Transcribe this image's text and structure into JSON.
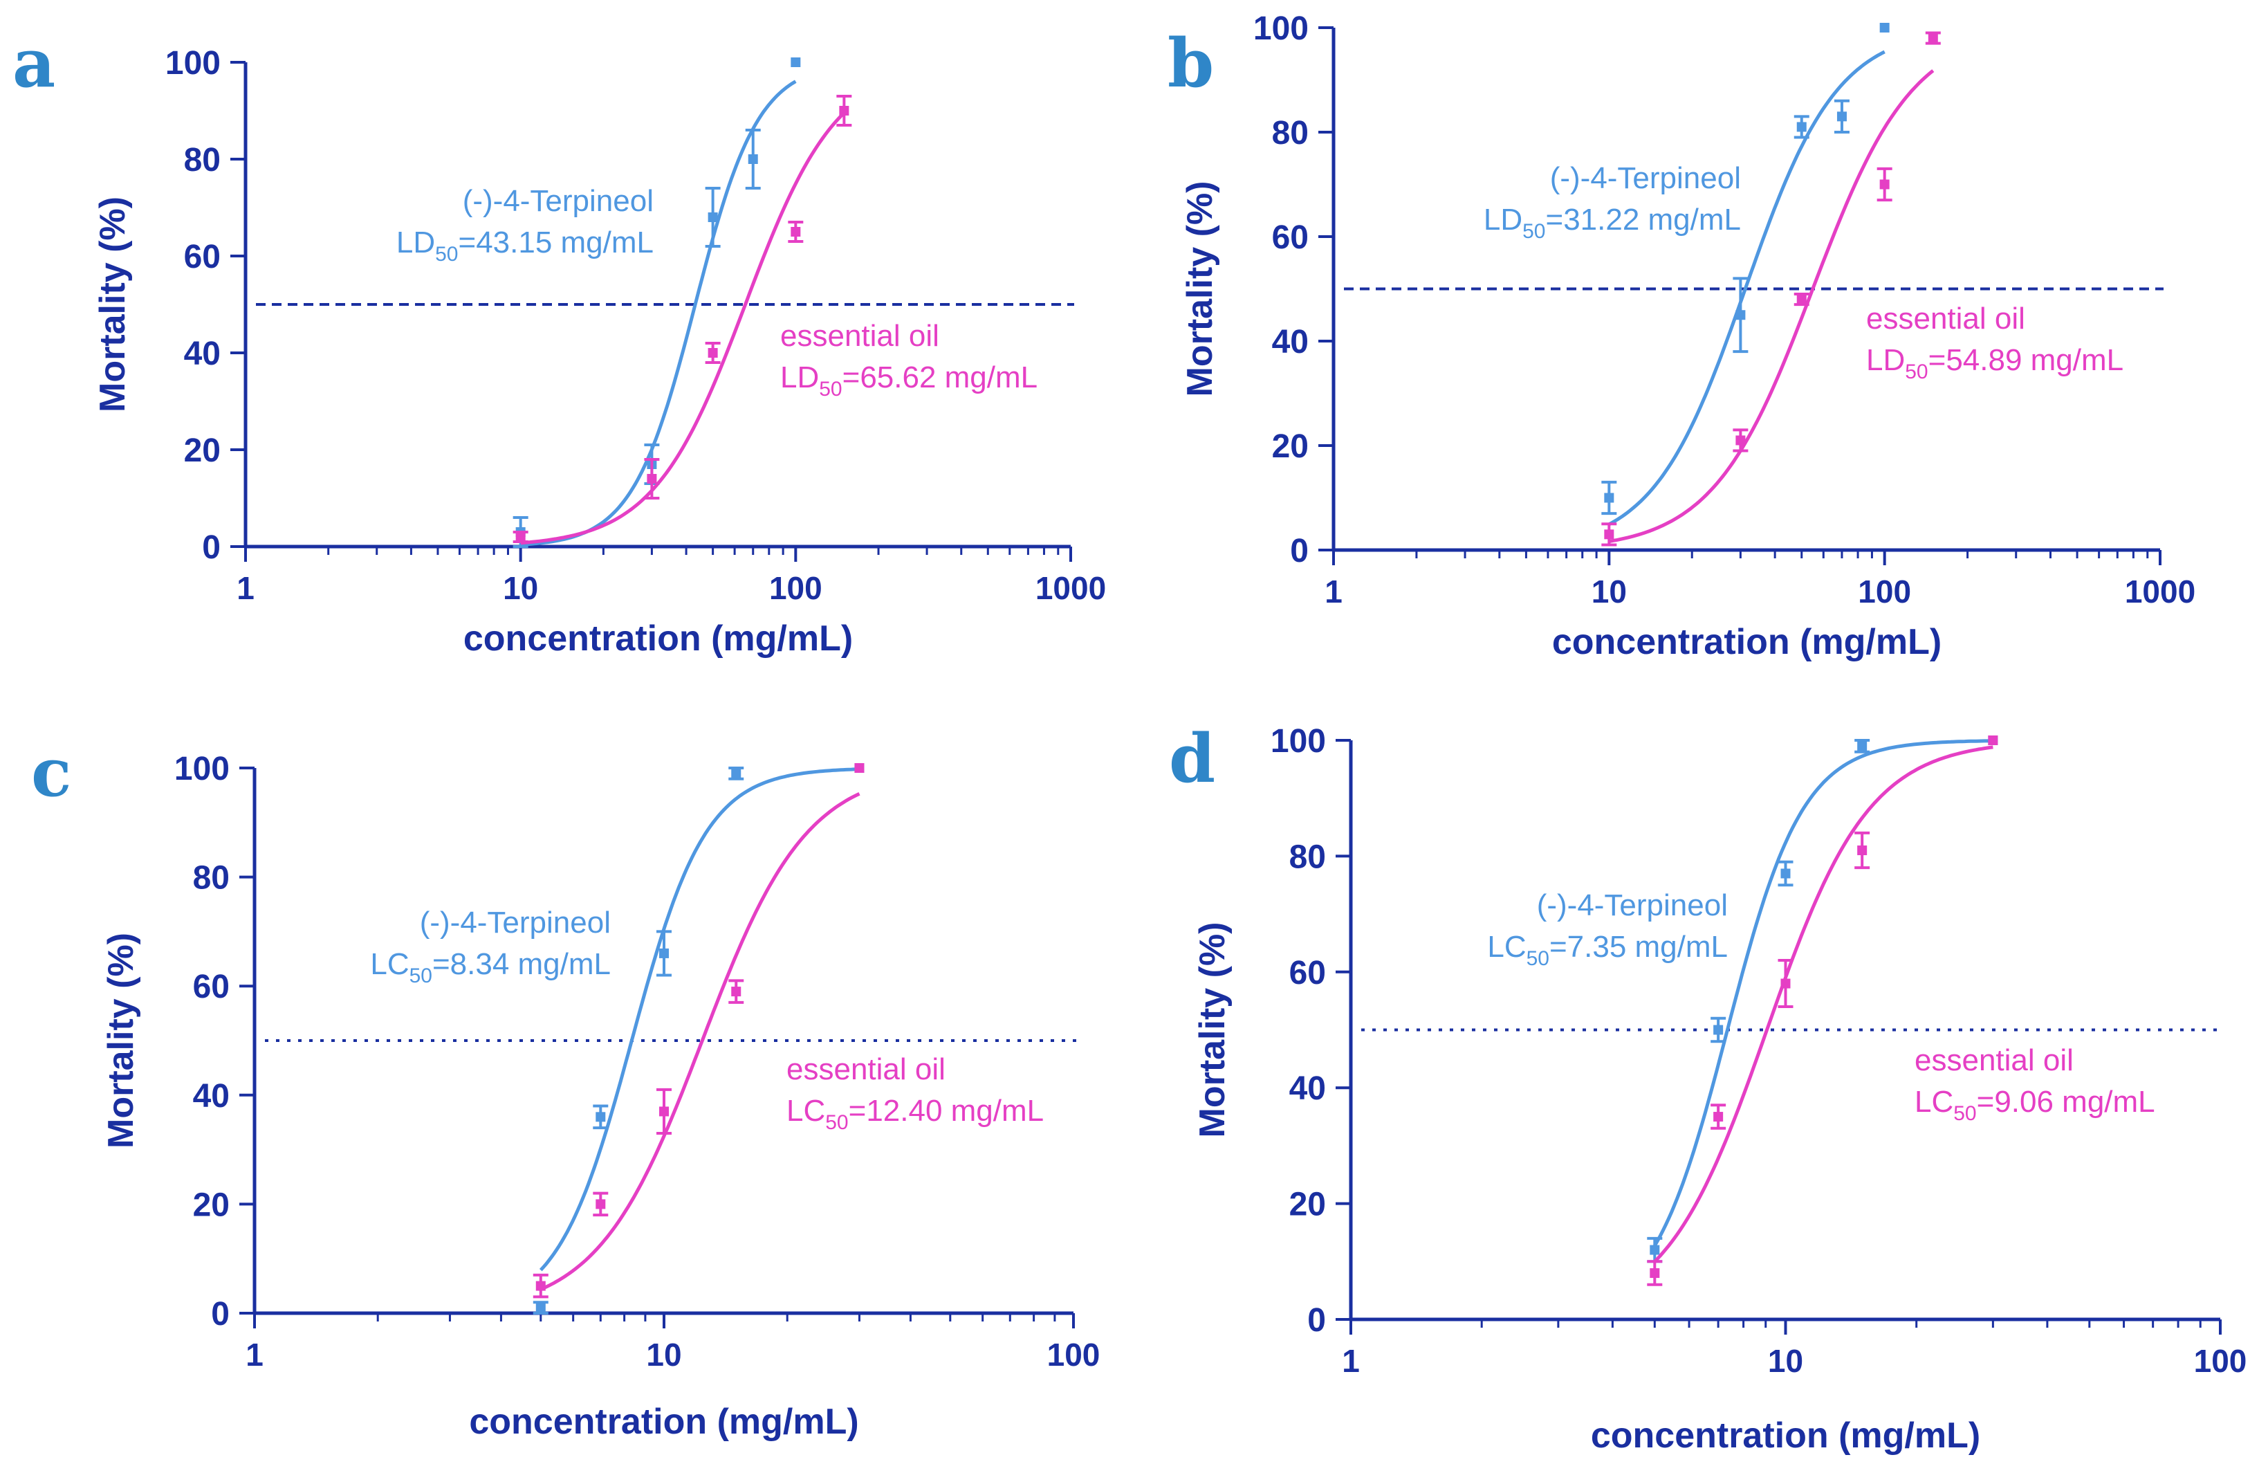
{
  "colors": {
    "axis": "#1a2fa0",
    "terpineol": "#4f97e0",
    "oil": "#e53fc4",
    "letter": "#2f86c8"
  },
  "chart_data": [
    {
      "panel": "a",
      "type": "scatter",
      "xscale": "log",
      "xlim": [
        1,
        1000
      ],
      "ylim": [
        0,
        100
      ],
      "xticks": [
        1,
        10,
        100,
        1000
      ],
      "xtick_labels": [
        "1",
        "10",
        "100",
        "1000"
      ],
      "yticks": [
        0,
        20,
        40,
        60,
        80,
        100
      ],
      "ytick_labels": [
        "0",
        "20",
        "40",
        "60",
        "80",
        "100"
      ],
      "xlabel": "concentration (mg/mL)",
      "ylabel": "Mortality (%)",
      "reference_line": {
        "y": 50,
        "style": "dashed"
      },
      "series": [
        {
          "name": "(-)-4-Terpineol",
          "label_prefix": "LD",
          "label_sub": "50",
          "label_value": "=43.15 mg/mL",
          "x": [
            10,
            30,
            50,
            70,
            100
          ],
          "y": [
            3,
            17,
            68,
            80,
            100
          ],
          "err": [
            3,
            4,
            6,
            6,
            0
          ],
          "fit": {
            "ec50": 43.15,
            "hill": 3.8
          }
        },
        {
          "name": "essential oil",
          "label_prefix": "LD",
          "label_sub": "50",
          "label_value": "=65.62 mg/mL",
          "x": [
            10,
            30,
            50,
            100,
            150
          ],
          "y": [
            2,
            14,
            40,
            65,
            90
          ],
          "err": [
            1,
            4,
            2,
            2,
            3
          ],
          "fit": {
            "ec50": 65.62,
            "hill": 2.6
          }
        }
      ]
    },
    {
      "panel": "b",
      "type": "scatter",
      "xscale": "log",
      "xlim": [
        1,
        1000
      ],
      "ylim": [
        0,
        100
      ],
      "xticks": [
        1,
        10,
        100,
        1000
      ],
      "xtick_labels": [
        "1",
        "10",
        "100",
        "1000"
      ],
      "yticks": [
        0,
        20,
        40,
        60,
        80,
        100
      ],
      "ytick_labels": [
        "0",
        "20",
        "40",
        "60",
        "80",
        "100"
      ],
      "xlabel": "concentration (mg/mL)",
      "ylabel": "Mortality (%)",
      "reference_line": {
        "y": 50,
        "style": "dashed"
      },
      "series": [
        {
          "name": "(-)-4-Terpineol",
          "label_prefix": "LD",
          "label_sub": "50",
          "label_value": "=31.22 mg/mL",
          "x": [
            10,
            30,
            50,
            70,
            100
          ],
          "y": [
            10,
            45,
            81,
            83,
            100
          ],
          "err": [
            3,
            7,
            2,
            3,
            0
          ],
          "fit": {
            "ec50": 31.22,
            "hill": 2.6
          }
        },
        {
          "name": "essential oil",
          "label_prefix": "LD",
          "label_sub": "50",
          "label_value": "=54.89 mg/mL",
          "x": [
            10,
            30,
            50,
            100,
            150
          ],
          "y": [
            3,
            21,
            48,
            70,
            98
          ],
          "err": [
            2,
            2,
            1,
            3,
            1
          ],
          "fit": {
            "ec50": 54.89,
            "hill": 2.4
          }
        }
      ]
    },
    {
      "panel": "c",
      "type": "scatter",
      "xscale": "log",
      "xlim": [
        1,
        100
      ],
      "ylim": [
        0,
        100
      ],
      "xticks": [
        1,
        10,
        100
      ],
      "xtick_labels": [
        "1",
        "10",
        "100"
      ],
      "yticks": [
        0,
        20,
        40,
        60,
        80,
        100
      ],
      "ytick_labels": [
        "0",
        "20",
        "40",
        "60",
        "80",
        "100"
      ],
      "xlabel": "concentration (mg/mL)",
      "ylabel": "Mortality (%)",
      "reference_line": {
        "y": 50,
        "style": "dotted"
      },
      "series": [
        {
          "name": "(-)-4-Terpineol",
          "label_prefix": "LC",
          "label_sub": "50",
          "label_value": "=8.34 mg/mL",
          "x": [
            5,
            7,
            10,
            15,
            30
          ],
          "y": [
            1,
            36,
            66,
            99,
            100
          ],
          "err": [
            1,
            2,
            4,
            1,
            0
          ],
          "fit": {
            "ec50": 8.34,
            "hill": 4.8
          }
        },
        {
          "name": "essential oil",
          "label_prefix": "LC",
          "label_sub": "50",
          "label_value": "=12.40 mg/mL",
          "x": [
            5,
            7,
            10,
            15,
            30
          ],
          "y": [
            5,
            20,
            37,
            59,
            100
          ],
          "err": [
            2,
            2,
            4,
            2,
            0
          ],
          "fit": {
            "ec50": 12.4,
            "hill": 3.4
          }
        }
      ]
    },
    {
      "panel": "d",
      "type": "scatter",
      "xscale": "log",
      "xlim": [
        1,
        100
      ],
      "ylim": [
        0,
        100
      ],
      "xticks": [
        1,
        10,
        100
      ],
      "xtick_labels": [
        "1",
        "10",
        "100"
      ],
      "yticks": [
        0,
        20,
        40,
        60,
        80,
        100
      ],
      "ytick_labels": [
        "0",
        "20",
        "40",
        "60",
        "80",
        "100"
      ],
      "xlabel": "concentration (mg/mL)",
      "ylabel": "Mortality (%)",
      "reference_line": {
        "y": 50,
        "style": "dotted"
      },
      "series": [
        {
          "name": "(-)-4-Terpineol",
          "label_prefix": "LC",
          "label_sub": "50",
          "label_value": "=7.35 mg/mL",
          "x": [
            5,
            7,
            10,
            15,
            30
          ],
          "y": [
            12,
            50,
            77,
            99,
            100
          ],
          "err": [
            2,
            2,
            2,
            1,
            0
          ],
          "fit": {
            "ec50": 7.35,
            "hill": 5.0
          }
        },
        {
          "name": "essential oil",
          "label_prefix": "LC",
          "label_sub": "50",
          "label_value": "=9.06 mg/mL",
          "x": [
            5,
            7,
            10,
            15,
            30
          ],
          "y": [
            8,
            35,
            58,
            81,
            100
          ],
          "err": [
            2,
            2,
            4,
            3,
            0
          ],
          "fit": {
            "ec50": 9.06,
            "hill": 3.7
          }
        }
      ]
    }
  ]
}
